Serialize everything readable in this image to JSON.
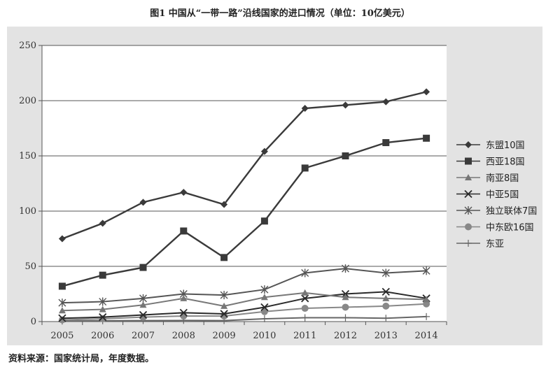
{
  "title": "图1  中国从“一带一路”沿线国家的进口情况（单位：10亿美元）",
  "source": "资料来源：国家统计局，年度数据。",
  "chart_data": {
    "type": "line",
    "title": "图1  中国从“一带一路”沿线国家的进口情况（单位：10亿美元）",
    "xlabel": "",
    "ylabel": "",
    "x": [
      "2005",
      "2006",
      "2007",
      "2008",
      "2009",
      "2010",
      "2011",
      "2012",
      "2013",
      "2014"
    ],
    "ylim": [
      0,
      250
    ],
    "yticks": [
      0,
      50,
      100,
      150,
      200,
      250
    ],
    "grid": true,
    "legend_position": "right",
    "series": [
      {
        "name": "东盟10国",
        "marker": "diamond",
        "color": "#3a3a3a",
        "values": [
          75,
          89,
          108,
          117,
          106,
          154,
          193,
          196,
          199,
          208
        ]
      },
      {
        "name": "西亚18国",
        "marker": "square",
        "color": "#3a3a3a",
        "values": [
          32,
          42,
          49,
          82,
          58,
          91,
          139,
          150,
          162,
          166
        ]
      },
      {
        "name": "南亚8国",
        "marker": "triangle",
        "color": "#777777",
        "values": [
          10,
          11,
          15,
          21,
          14,
          22,
          26,
          22,
          21,
          20
        ]
      },
      {
        "name": "中亚5国",
        "marker": "x",
        "color": "#2a2a2a",
        "values": [
          3,
          4,
          6,
          8,
          7,
          13,
          21,
          25,
          27,
          21
        ]
      },
      {
        "name": "独立联体7国",
        "marker": "star",
        "color": "#555555",
        "values": [
          17,
          18,
          21,
          25,
          24,
          29,
          44,
          48,
          44,
          46
        ]
      },
      {
        "name": "中东欧16国",
        "marker": "circle",
        "color": "#888888",
        "values": [
          1.5,
          2.5,
          4,
          5,
          5,
          9,
          12,
          13,
          14,
          16
        ]
      },
      {
        "name": "东亚",
        "marker": "plus",
        "color": "#666666",
        "values": [
          0.5,
          0.7,
          0.9,
          1.0,
          0.9,
          2.5,
          3.5,
          3.5,
          3.0,
          4.5
        ]
      }
    ]
  }
}
